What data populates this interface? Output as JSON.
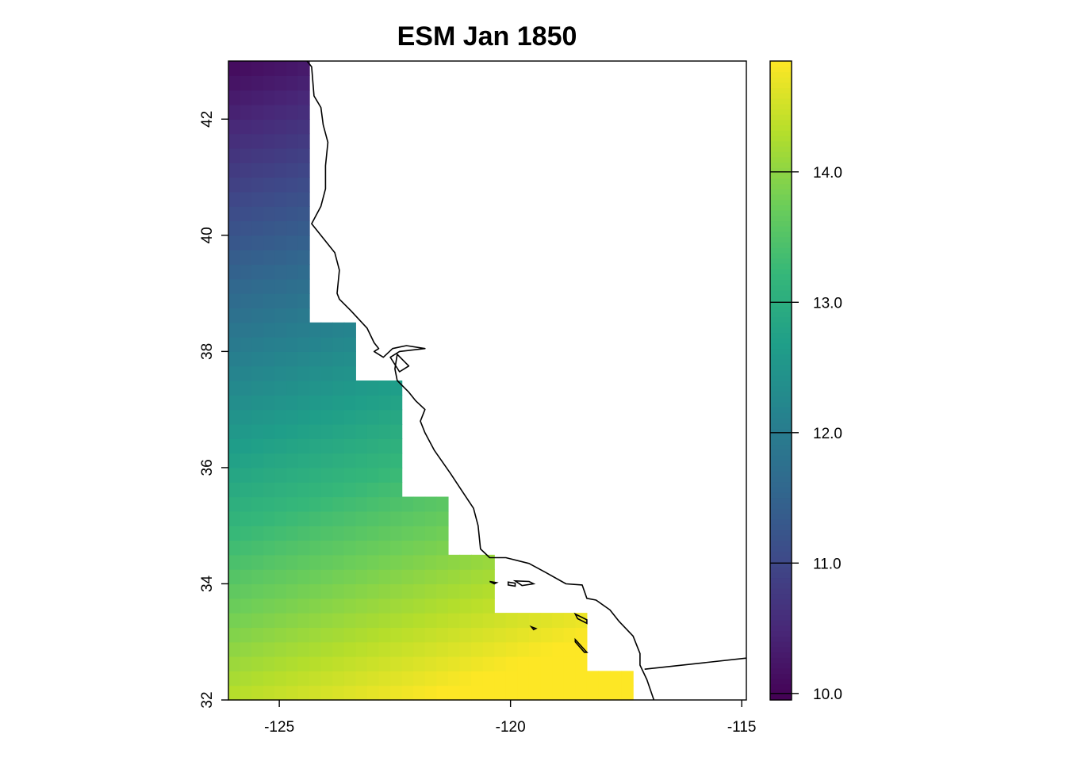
{
  "chart_data": {
    "type": "heatmap",
    "title": "ESM Jan 1850",
    "xlabel": "",
    "ylabel": "",
    "xlim": [
      -126.1,
      -114.9
    ],
    "ylim": [
      32,
      43
    ],
    "x_ticks": [
      "-125",
      "-120",
      "-115"
    ],
    "x_tick_values": [
      -125,
      -120,
      -115
    ],
    "y_ticks": [
      "32",
      "34",
      "36",
      "38",
      "40",
      "42"
    ],
    "y_tick_values": [
      32,
      34,
      36,
      38,
      40,
      42
    ],
    "grid": false,
    "colorbar": {
      "range": [
        9.95,
        14.85
      ],
      "ticks": [
        "10.0",
        "11.0",
        "12.0",
        "13.0",
        "14.0"
      ],
      "tick_values": [
        10,
        11,
        12,
        13,
        14
      ],
      "palette": [
        "#440154",
        "#482878",
        "#3e4a89",
        "#31688e",
        "#26828e",
        "#1f9e89",
        "#35b779",
        "#6ece58",
        "#b5de2b",
        "#fde725"
      ]
    },
    "cell_size_deg": 0.25,
    "grid_lon_start": -126.1,
    "grid_lat_start": 32,
    "grid_extent": [
      {
        "lat_range": [
          32.0,
          32.5
        ],
        "lon_range": [
          -126.1,
          -117.35
        ]
      },
      {
        "lat_range": [
          32.5,
          33.5
        ],
        "lon_range": [
          -126.1,
          -118.35
        ]
      },
      {
        "lat_range": [
          33.5,
          34.5
        ],
        "lon_range": [
          -126.1,
          -120.35
        ]
      },
      {
        "lat_range": [
          34.5,
          35.5
        ],
        "lon_range": [
          -126.1,
          -121.35
        ]
      },
      {
        "lat_range": [
          35.5,
          37.5
        ],
        "lon_range": [
          -126.1,
          -122.35
        ]
      },
      {
        "lat_range": [
          37.5,
          38.5
        ],
        "lon_range": [
          -126.1,
          -123.35
        ]
      },
      {
        "lat_range": [
          38.5,
          43.0
        ],
        "lon_range": [
          -126.1,
          -124.35
        ]
      }
    ],
    "sst_model": {
      "base": 10.05,
      "lat_ref": 43.0,
      "south_gradient_per_deg": 0.39,
      "lon_ref": -126.1,
      "east_gradient_per_deg": 0.12
    },
    "coastline": [
      [
        -124.4,
        43.0
      ],
      [
        -124.3,
        42.9
      ],
      [
        -124.25,
        42.4
      ],
      [
        -124.1,
        42.2
      ],
      [
        -124.05,
        41.9
      ],
      [
        -123.95,
        41.6
      ],
      [
        -124.0,
        41.2
      ],
      [
        -124.0,
        40.8
      ],
      [
        -124.1,
        40.5
      ],
      [
        -124.3,
        40.2
      ],
      [
        -124.0,
        39.9
      ],
      [
        -123.8,
        39.7
      ],
      [
        -123.7,
        39.4
      ],
      [
        -123.75,
        39.0
      ],
      [
        -123.7,
        38.9
      ],
      [
        -123.45,
        38.7
      ],
      [
        -123.1,
        38.4
      ],
      [
        -122.95,
        38.15
      ],
      [
        -122.85,
        38.05
      ],
      [
        -122.95,
        38.0
      ],
      [
        -122.75,
        37.9
      ],
      [
        -122.55,
        38.05
      ],
      [
        -122.25,
        38.1
      ],
      [
        -121.85,
        38.05
      ],
      [
        -122.4,
        38.0
      ],
      [
        -122.6,
        37.9
      ],
      [
        -122.4,
        37.65
      ],
      [
        -122.2,
        37.75
      ],
      [
        -122.45,
        37.95
      ],
      [
        -122.5,
        37.7
      ],
      [
        -122.45,
        37.5
      ],
      [
        -122.2,
        37.3
      ],
      [
        -122.05,
        37.15
      ],
      [
        -121.85,
        37.0
      ],
      [
        -121.95,
        36.8
      ],
      [
        -121.85,
        36.6
      ],
      [
        -121.65,
        36.3
      ],
      [
        -121.3,
        35.9
      ],
      [
        -121.05,
        35.6
      ],
      [
        -120.8,
        35.3
      ],
      [
        -120.7,
        35.0
      ],
      [
        -120.65,
        34.6
      ],
      [
        -120.45,
        34.45
      ],
      [
        -120.1,
        34.45
      ],
      [
        -119.6,
        34.35
      ],
      [
        -119.25,
        34.2
      ],
      [
        -118.8,
        34.0
      ],
      [
        -118.45,
        33.98
      ],
      [
        -118.35,
        33.75
      ],
      [
        -118.15,
        33.72
      ],
      [
        -117.85,
        33.55
      ],
      [
        -117.65,
        33.35
      ],
      [
        -117.35,
        33.1
      ],
      [
        -117.2,
        32.8
      ],
      [
        -117.2,
        32.6
      ],
      [
        -117.05,
        32.35
      ],
      [
        -116.9,
        32.0
      ]
    ],
    "border": [
      [
        -117.1,
        32.53
      ],
      [
        -114.9,
        32.72
      ]
    ],
    "islands": [
      [
        [
          -120.45,
          34.04
        ],
        [
          -120.3,
          34.02
        ],
        [
          -120.35,
          34.0
        ],
        [
          -120.45,
          34.04
        ]
      ],
      [
        [
          -120.05,
          34.03
        ],
        [
          -119.9,
          34.01
        ],
        [
          -119.9,
          33.96
        ],
        [
          -120.05,
          33.98
        ],
        [
          -120.05,
          34.03
        ]
      ],
      [
        [
          -119.9,
          34.05
        ],
        [
          -119.6,
          34.04
        ],
        [
          -119.5,
          34.0
        ],
        [
          -119.75,
          33.97
        ],
        [
          -119.9,
          34.05
        ]
      ],
      [
        [
          -119.55,
          33.26
        ],
        [
          -119.45,
          33.23
        ],
        [
          -119.5,
          33.21
        ],
        [
          -119.55,
          33.26
        ]
      ],
      [
        [
          -118.6,
          33.48
        ],
        [
          -118.35,
          33.38
        ],
        [
          -118.35,
          33.32
        ],
        [
          -118.55,
          33.4
        ],
        [
          -118.6,
          33.48
        ]
      ],
      [
        [
          -118.6,
          33.04
        ],
        [
          -118.35,
          32.82
        ],
        [
          -118.4,
          32.82
        ],
        [
          -118.6,
          33.0
        ],
        [
          -118.6,
          33.04
        ]
      ]
    ]
  }
}
